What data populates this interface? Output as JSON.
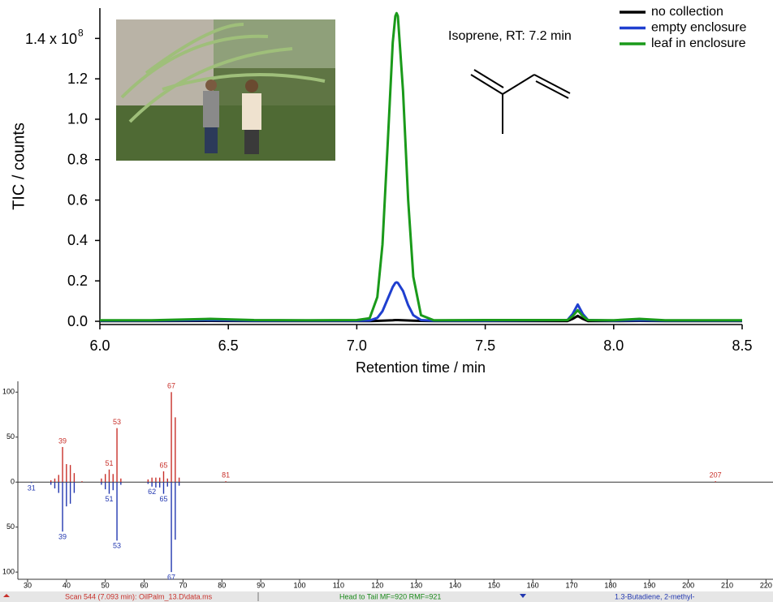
{
  "chart_data": [
    {
      "type": "line",
      "annotation": "Isoprene, RT: 7.2 min",
      "x_label": "Retention time / min",
      "y_label": "TIC / counts",
      "xlim": [
        6.0,
        8.5
      ],
      "ylim": [
        -0.016,
        1.55
      ],
      "xticks": [
        {
          "value": 6,
          "label": "6.0"
        },
        6.5,
        {
          "value": 7,
          "label": "7.0"
        },
        7.5,
        {
          "value": 8,
          "label": "8.0"
        },
        8.5
      ],
      "yticks": [
        {
          "value": 0,
          "label": "0.0"
        },
        0.2,
        0.4,
        0.6,
        0.8,
        {
          "value": 1,
          "label": "1.0"
        },
        1.2,
        {
          "value": 1.4,
          "label": "1.4 x 10",
          "exponent": "8"
        }
      ],
      "legend": "upper right",
      "x": [
        6.0,
        6.2,
        6.43,
        6.6,
        6.8,
        7.0,
        7.05,
        7.08,
        7.1,
        7.12,
        7.14,
        7.15,
        7.155,
        7.16,
        7.18,
        7.2,
        7.22,
        7.25,
        7.3,
        7.5,
        7.82,
        7.84,
        7.86,
        7.88,
        7.9,
        8.0,
        8.1,
        8.2,
        8.5
      ],
      "series": [
        {
          "name": "no collection",
          "color": "#000000",
          "values": [
            0.001,
            0.001,
            0.002,
            0.001,
            0.001,
            0.001,
            0.001,
            0.002,
            0.003,
            0.004,
            0.005,
            0.006,
            0.006,
            0.006,
            0.005,
            0.004,
            0.003,
            0.002,
            0.001,
            0.001,
            0.001,
            0.012,
            0.027,
            0.012,
            0.001,
            0.001,
            0.002,
            0.001,
            0.001
          ]
        },
        {
          "name": "empty enclosure",
          "color": "#1f3fcf",
          "values": [
            0.003,
            0.003,
            0.006,
            0.003,
            0.003,
            0.003,
            0.004,
            0.017,
            0.05,
            0.11,
            0.17,
            0.19,
            0.193,
            0.19,
            0.15,
            0.08,
            0.03,
            0.006,
            0.003,
            0.003,
            0.006,
            0.036,
            0.083,
            0.036,
            0.006,
            0.003,
            0.005,
            0.003,
            0.003
          ]
        },
        {
          "name": "leaf in enclosure",
          "color": "#1a9a1a",
          "values": [
            0.005,
            0.005,
            0.012,
            0.006,
            0.005,
            0.006,
            0.015,
            0.12,
            0.38,
            0.87,
            1.38,
            1.51,
            1.525,
            1.51,
            1.14,
            0.6,
            0.22,
            0.03,
            0.005,
            0.006,
            0.006,
            0.025,
            0.055,
            0.025,
            0.006,
            0.005,
            0.012,
            0.005,
            0.005
          ]
        }
      ]
    },
    {
      "type": "bar",
      "xlim": [
        27.5,
        221.8
      ],
      "ylim": [
        -108,
        112
      ],
      "xticks": [
        30,
        40,
        50,
        60,
        70,
        80,
        90,
        100,
        110,
        120,
        130,
        140,
        150,
        160,
        170,
        180,
        190,
        200,
        210,
        220
      ],
      "yticks": [
        100,
        50,
        0,
        {
          "value": -50,
          "label": "50"
        },
        {
          "value": -100,
          "label": "100"
        }
      ],
      "series": [
        {
          "color": "#c8302a",
          "x": [
            36,
            37,
            38,
            39,
            40,
            41,
            42,
            44,
            49,
            50,
            51,
            52,
            53,
            54,
            61,
            62,
            63,
            64,
            65,
            66,
            67,
            68,
            69,
            81,
            207
          ],
          "values": [
            2,
            4,
            8,
            39,
            20,
            19,
            10,
            1,
            4,
            9,
            14,
            9,
            60,
            4,
            3,
            5,
            5,
            5,
            12,
            4,
            100,
            72,
            5,
            1,
            1
          ],
          "peak_labels": [
            null,
            null,
            null,
            "39",
            null,
            null,
            null,
            null,
            null,
            null,
            "51",
            null,
            "53",
            null,
            null,
            null,
            null,
            null,
            "65",
            null,
            "67",
            null,
            null,
            "81",
            "207"
          ]
        },
        {
          "color": "#2338b0",
          "x": [
            31,
            36,
            37,
            38,
            39,
            40,
            41,
            42,
            49,
            50,
            51,
            52,
            53,
            54,
            61,
            62,
            63,
            64,
            65,
            66,
            67,
            68,
            69
          ],
          "values": [
            -1,
            -3,
            -7,
            -12,
            -55,
            -27,
            -24,
            -12,
            -3,
            -8,
            -13,
            -9,
            -65,
            -3,
            -2,
            -5,
            -6,
            -6,
            -13,
            -5,
            -100,
            -64,
            -4
          ],
          "peak_labels": [
            "31",
            null,
            null,
            null,
            "39",
            null,
            null,
            null,
            null,
            null,
            "51",
            null,
            "53",
            null,
            null,
            "62",
            null,
            null,
            "65",
            null,
            "67",
            null,
            null
          ]
        }
      ]
    }
  ],
  "status_bar": {
    "scan": "Scan 544 (7.093 min): OilPalm_13.D\\data.ms",
    "match": "Head to Tail MF=920 RMF=921",
    "library": "1.3-Butadiene, 2-methyl-"
  }
}
